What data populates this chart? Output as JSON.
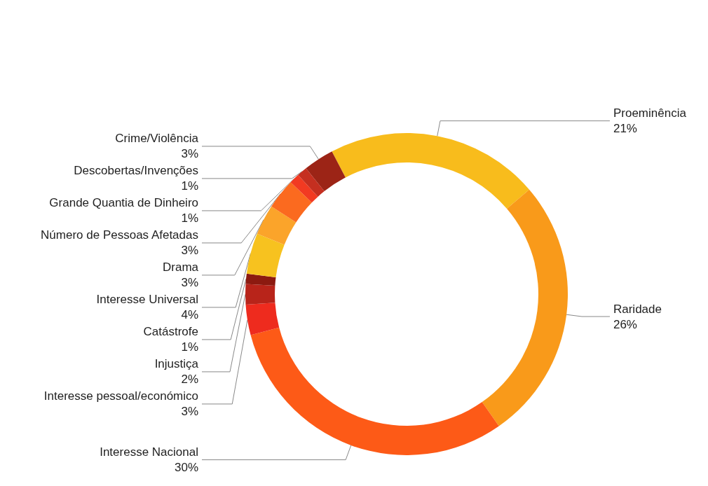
{
  "chart_data": {
    "type": "donut",
    "categories": [
      "Proeminência",
      "Raridade",
      "Interesse Nacional",
      "Interesse pessoal/económico",
      "Injustiça",
      "Catástrofe",
      "Interesse Universal",
      "Drama",
      "Número de Pessoas Afetadas",
      "Grande Quantia de Dinheiro",
      "Descobertas/Invenções",
      "Crime/Violência"
    ],
    "values": [
      21,
      26,
      30,
      3,
      2,
      1,
      4,
      3,
      3,
      1,
      1,
      3
    ],
    "value_labels": [
      "21%",
      "26%",
      "30%",
      "3%",
      "2%",
      "1%",
      "4%",
      "3%",
      "3%",
      "1%",
      "1%",
      "3%"
    ],
    "colors": [
      "#f8bc1c",
      "#f99a1a",
      "#fd5a17",
      "#ee2b1e",
      "#b8241a",
      "#8c1a10",
      "#f7c21f",
      "#fba42a",
      "#fb6a1f",
      "#f23a22",
      "#c52f20",
      "#9c2416"
    ],
    "legend": false
  }
}
